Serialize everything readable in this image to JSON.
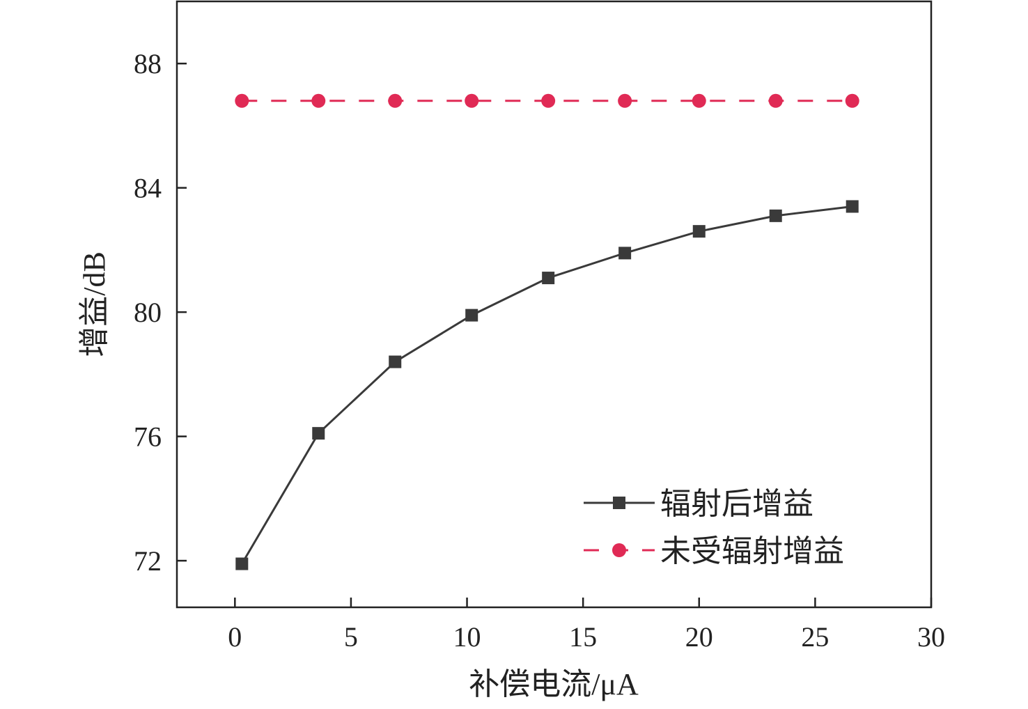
{
  "chart_data": {
    "type": "line",
    "title": "",
    "xlabel": "补偿电流/μA",
    "ylabel": "增益/dB",
    "xlim": [
      -2.5,
      30
    ],
    "ylim": [
      70.5,
      90
    ],
    "xticks": [
      0,
      5,
      10,
      15,
      20,
      25,
      30
    ],
    "yticks": [
      72,
      76,
      80,
      84,
      88
    ],
    "grid": false,
    "legend_position": "bottom-right",
    "x": [
      0.3,
      3.6,
      6.9,
      10.2,
      13.5,
      16.8,
      20.0,
      23.3,
      26.6
    ],
    "series": [
      {
        "name": "辐射后增益",
        "color": "#3a3a3a",
        "line_style": "solid",
        "marker": "square",
        "values": [
          71.9,
          76.1,
          78.4,
          79.9,
          81.1,
          81.9,
          82.6,
          83.1,
          83.4
        ]
      },
      {
        "name": "未受辐射增益",
        "color": "#e02a55",
        "line_style": "dashed",
        "marker": "circle",
        "values": [
          86.8,
          86.8,
          86.8,
          86.8,
          86.8,
          86.8,
          86.8,
          86.8,
          86.8
        ]
      }
    ]
  }
}
